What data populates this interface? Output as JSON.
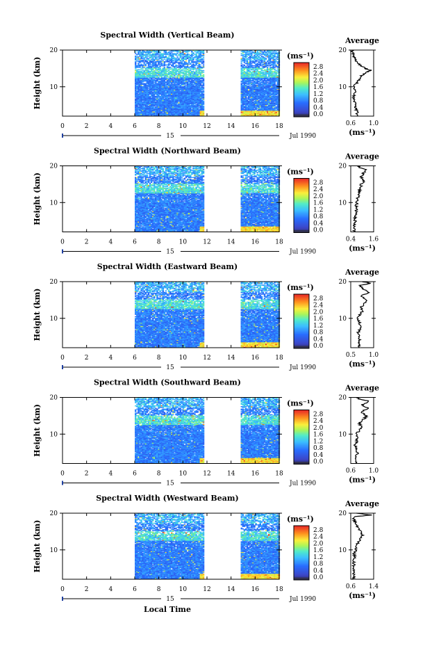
{
  "figure": {
    "date_label": "Jul 1990",
    "day_label": "15",
    "x_axis_label": "Local Time",
    "unit_label": "(ms⁻¹)",
    "average_title": "Average",
    "y_axis_label": "Height (km)"
  },
  "chart_data": [
    {
      "type": "heatmap",
      "title": "Spectral Width (Vertical Beam)",
      "xlabel": "",
      "ylabel": "Height (km)",
      "xlim": [
        0,
        18
      ],
      "ylim": [
        2,
        20
      ],
      "x_ticks": [
        "0",
        "2",
        "4",
        "6",
        "8",
        "10",
        "12",
        "14",
        "16",
        "18"
      ],
      "y_ticks": [
        "10",
        "20"
      ],
      "data_intervals": [
        [
          6,
          11.7
        ],
        [
          14.8,
          18
        ]
      ],
      "colorbar": {
        "label": "(ms⁻¹)",
        "ticks": [
          "0.0",
          "0.4",
          "0.8",
          "1.2",
          "1.6",
          "2.0",
          "2.4",
          "2.8"
        ],
        "range": [
          0,
          3
        ]
      },
      "average_profile": {
        "title": "Average",
        "xlabel": "(ms⁻¹)",
        "xlim": [
          0.6,
          1.0
        ],
        "x_ticks": [
          "0.6",
          "1.0"
        ],
        "y_ticks": [
          "10",
          "20"
        ],
        "profile": [
          [
            2,
            0.7
          ],
          [
            3,
            0.71
          ],
          [
            4,
            0.69
          ],
          [
            5,
            0.68
          ],
          [
            6,
            0.66
          ],
          [
            7,
            0.64
          ],
          [
            8,
            0.66
          ],
          [
            9,
            0.67
          ],
          [
            10,
            0.65
          ],
          [
            11,
            0.7
          ],
          [
            12,
            0.74
          ],
          [
            13,
            0.78
          ],
          [
            14,
            0.88
          ],
          [
            14.5,
            0.95
          ],
          [
            15,
            0.85
          ],
          [
            16,
            0.75
          ],
          [
            17,
            0.7
          ],
          [
            18,
            0.66
          ],
          [
            19,
            0.64
          ],
          [
            20,
            0.62
          ]
        ]
      }
    },
    {
      "type": "heatmap",
      "title": "Spectral Width (Northward Beam)",
      "xlabel": "",
      "ylabel": "Height (km)",
      "xlim": [
        0,
        18
      ],
      "ylim": [
        2,
        20
      ],
      "x_ticks": [
        "0",
        "2",
        "4",
        "6",
        "8",
        "10",
        "12",
        "14",
        "16",
        "18"
      ],
      "y_ticks": [
        "10",
        "20"
      ],
      "data_intervals": [
        [
          6,
          11.7
        ],
        [
          14.8,
          18
        ]
      ],
      "colorbar": {
        "label": "(ms⁻¹)",
        "ticks": [
          "0.0",
          "0.4",
          "0.8",
          "1.2",
          "1.6",
          "2.0",
          "2.4",
          "2.8"
        ],
        "range": [
          0,
          3
        ]
      },
      "average_profile": {
        "title": "Average",
        "xlabel": "(ms⁻¹)",
        "xlim": [
          0.4,
          1.6
        ],
        "x_ticks": [
          "0.4",
          "1.6"
        ],
        "y_ticks": [
          "10",
          "20"
        ],
        "profile": [
          [
            2,
            0.6
          ],
          [
            3,
            0.58
          ],
          [
            4,
            0.6
          ],
          [
            5,
            0.63
          ],
          [
            6,
            0.62
          ],
          [
            7,
            0.65
          ],
          [
            8,
            0.7
          ],
          [
            9,
            0.68
          ],
          [
            10,
            0.72
          ],
          [
            11,
            0.75
          ],
          [
            12,
            0.8
          ],
          [
            13,
            0.85
          ],
          [
            14,
            0.9
          ],
          [
            15,
            0.95
          ],
          [
            16,
            1.1
          ],
          [
            17,
            0.95
          ],
          [
            18,
            1.05
          ],
          [
            19,
            1.2
          ],
          [
            19.5,
            0.9
          ],
          [
            20,
            0.8
          ]
        ]
      }
    },
    {
      "type": "heatmap",
      "title": "Spectral Width (Eastward Beam)",
      "xlabel": "",
      "ylabel": "Height (km)",
      "xlim": [
        0,
        18
      ],
      "ylim": [
        2,
        20
      ],
      "x_ticks": [
        "0",
        "2",
        "4",
        "6",
        "8",
        "10",
        "12",
        "14",
        "16",
        "18"
      ],
      "y_ticks": [
        "10",
        "20"
      ],
      "data_intervals": [
        [
          6,
          11.7
        ],
        [
          14.8,
          18
        ]
      ],
      "colorbar": {
        "label": "(ms⁻¹)",
        "ticks": [
          "0.0",
          "0.4",
          "0.8",
          "1.2",
          "1.6",
          "2.0",
          "2.4",
          "2.8"
        ],
        "range": [
          0,
          3
        ]
      },
      "average_profile": {
        "title": "Average",
        "xlabel": "(ms⁻¹)",
        "xlim": [
          0.5,
          1.0
        ],
        "x_ticks": [
          "0.5",
          "1.0"
        ],
        "y_ticks": [
          "10",
          "20"
        ],
        "profile": [
          [
            2,
            0.68
          ],
          [
            3,
            0.67
          ],
          [
            4,
            0.7
          ],
          [
            5,
            0.69
          ],
          [
            6,
            0.66
          ],
          [
            7,
            0.7
          ],
          [
            8,
            0.72
          ],
          [
            9,
            0.68
          ],
          [
            10,
            0.65
          ],
          [
            11,
            0.7
          ],
          [
            12,
            0.75
          ],
          [
            13,
            0.72
          ],
          [
            14,
            0.8
          ],
          [
            15,
            0.85
          ],
          [
            16,
            0.72
          ],
          [
            17,
            0.88
          ],
          [
            18,
            0.78
          ],
          [
            19,
            0.7
          ],
          [
            19.5,
            0.95
          ],
          [
            20,
            0.75
          ]
        ]
      }
    },
    {
      "type": "heatmap",
      "title": "Spectral Width (Southward Beam)",
      "xlabel": "",
      "ylabel": "Height (km)",
      "xlim": [
        0,
        18
      ],
      "ylim": [
        2,
        20
      ],
      "x_ticks": [
        "0",
        "2",
        "4",
        "6",
        "8",
        "10",
        "12",
        "14",
        "16",
        "18"
      ],
      "y_ticks": [
        "10",
        "20"
      ],
      "data_intervals": [
        [
          6,
          11.7
        ],
        [
          14.8,
          18
        ]
      ],
      "colorbar": {
        "label": "(ms⁻¹)",
        "ticks": [
          "0.0",
          "0.4",
          "0.8",
          "1.2",
          "1.6",
          "2.0",
          "2.4",
          "2.8"
        ],
        "range": [
          0,
          3
        ]
      },
      "average_profile": {
        "title": "Average",
        "xlabel": "(ms⁻¹)",
        "xlim": [
          0.6,
          1.0
        ],
        "x_ticks": [
          "0.6",
          "1.0"
        ],
        "y_ticks": [
          "10",
          "20"
        ],
        "profile": [
          [
            2,
            0.7
          ],
          [
            3,
            0.71
          ],
          [
            4,
            0.69
          ],
          [
            5,
            0.72
          ],
          [
            6,
            0.7
          ],
          [
            7,
            0.68
          ],
          [
            8,
            0.7
          ],
          [
            9,
            0.72
          ],
          [
            10,
            0.7
          ],
          [
            11,
            0.74
          ],
          [
            12,
            0.78
          ],
          [
            13,
            0.75
          ],
          [
            14,
            0.82
          ],
          [
            15,
            0.88
          ],
          [
            16,
            0.78
          ],
          [
            17,
            0.9
          ],
          [
            18,
            0.8
          ],
          [
            19,
            0.92
          ],
          [
            19.5,
            0.75
          ],
          [
            20,
            0.7
          ]
        ]
      }
    },
    {
      "type": "heatmap",
      "title": "Spectral Width (Westward Beam)",
      "xlabel": "Local Time",
      "ylabel": "Height (km)",
      "xlim": [
        0,
        18
      ],
      "ylim": [
        2,
        20
      ],
      "x_ticks": [
        "0",
        "2",
        "4",
        "6",
        "8",
        "10",
        "12",
        "14",
        "16",
        "18"
      ],
      "y_ticks": [
        "10",
        "20"
      ],
      "data_intervals": [
        [
          6,
          11.7
        ],
        [
          14.8,
          18
        ]
      ],
      "colorbar": {
        "label": "(ms⁻¹)",
        "ticks": [
          "0.0",
          "0.4",
          "0.8",
          "1.2",
          "1.6",
          "2.0",
          "2.4",
          "2.8"
        ],
        "range": [
          0,
          3
        ]
      },
      "average_profile": {
        "title": "Average",
        "xlabel": "(ms⁻¹)",
        "xlim": [
          0.6,
          1.4
        ],
        "x_ticks": [
          "0.6",
          "1.4"
        ],
        "y_ticks": [
          "10",
          "20"
        ],
        "profile": [
          [
            2,
            0.7
          ],
          [
            3,
            0.72
          ],
          [
            4,
            0.7
          ],
          [
            5,
            0.68
          ],
          [
            6,
            0.72
          ],
          [
            7,
            0.7
          ],
          [
            8,
            0.74
          ],
          [
            9,
            0.72
          ],
          [
            10,
            0.78
          ],
          [
            11,
            0.8
          ],
          [
            12,
            0.85
          ],
          [
            13,
            0.92
          ],
          [
            14,
            1.0
          ],
          [
            15,
            0.95
          ],
          [
            16,
            0.85
          ],
          [
            17,
            0.78
          ],
          [
            18,
            0.72
          ],
          [
            19,
            0.7
          ],
          [
            19.5,
            1.3
          ],
          [
            20,
            0.8
          ]
        ]
      }
    }
  ]
}
